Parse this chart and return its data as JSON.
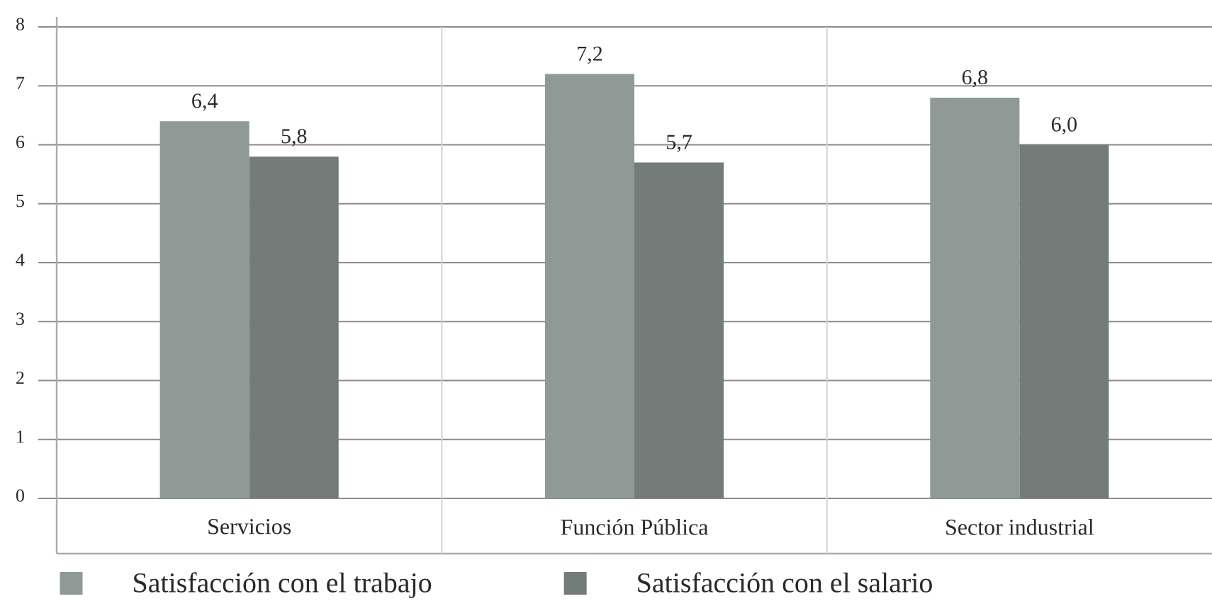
{
  "chart_data": {
    "type": "bar",
    "categories": [
      "Servicios",
      "Función Pública",
      "Sector industrial"
    ],
    "series": [
      {
        "name": "Satisfacción con el trabajo",
        "color": "#8f9a97",
        "values": [
          6.4,
          7.2,
          6.8
        ],
        "value_labels": [
          "6,4",
          "7,2",
          "6,8"
        ]
      },
      {
        "name": "Satisfacción con el salario",
        "color": "#747c7a",
        "values": [
          5.8,
          5.7,
          6.0
        ],
        "value_labels": [
          "5,8",
          "5,7",
          "6,0"
        ]
      }
    ],
    "ylim": [
      0,
      8
    ],
    "yticks": [
      0,
      1,
      2,
      3,
      4,
      5,
      6,
      7,
      8
    ],
    "grid": "y",
    "legend": "bottom"
  }
}
